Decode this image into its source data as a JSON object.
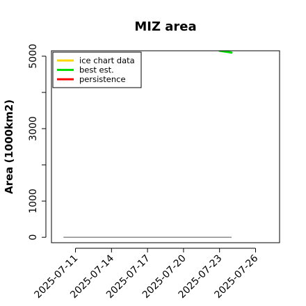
{
  "chart_data": {
    "type": "line",
    "title": "MIZ area",
    "xlabel": "",
    "ylabel": "Area (1000km2)",
    "xlim": [
      "2025-07-09",
      "2025-07-28"
    ],
    "ylim": [
      -150,
      5150
    ],
    "x_ticks": [
      "2025-07-11",
      "2025-07-14",
      "2025-07-17",
      "2025-07-20",
      "2025-07-23",
      "2025-07-26"
    ],
    "y_ticks": [
      0,
      1000,
      3000,
      5000
    ],
    "y_minor_ticks": [
      2000,
      4000
    ],
    "grid": false,
    "legend_position": "top-left",
    "series": [
      {
        "name": "ice chart data",
        "color": "#FFD700",
        "points": []
      },
      {
        "name": "best est.",
        "color": "#00DD00",
        "points": [
          {
            "x": "2025-07-23",
            "y": 5150
          },
          {
            "x": "2025-07-24",
            "y": 5100
          }
        ]
      },
      {
        "name": "persistence",
        "color": "#FF0000",
        "points": []
      }
    ],
    "reference_line": {
      "color": "#808080",
      "y": 0,
      "x_start": "2025-07-10",
      "x_end": "2025-07-24"
    }
  }
}
